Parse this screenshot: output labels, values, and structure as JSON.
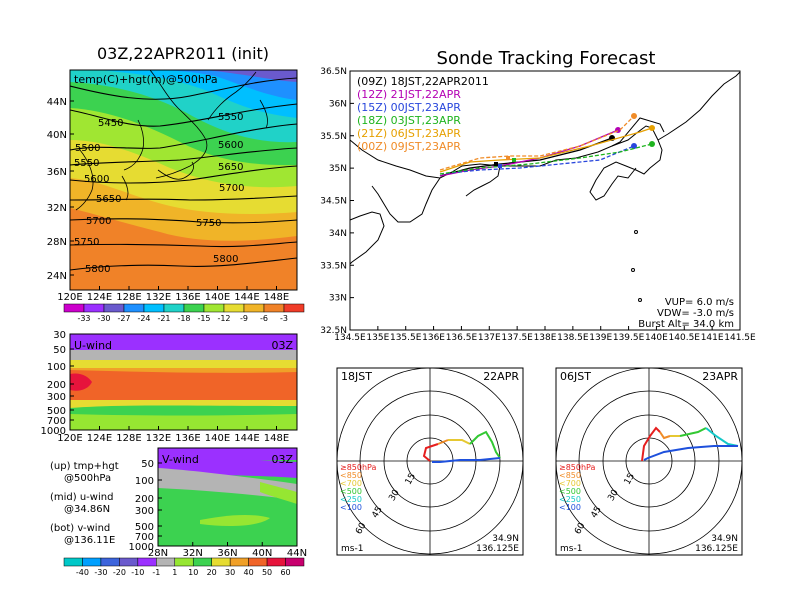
{
  "left": {
    "title": "03Z,22APR2011 (init)",
    "top_panel": {
      "label": "temp(C)+hgt(m)@500hPa",
      "contour_labels": [
        "5450",
        "5500",
        "5550",
        "5550",
        "5600",
        "5600",
        "5650",
        "5650",
        "5700",
        "5700",
        "5750",
        "5750",
        "5800",
        "5800"
      ],
      "yticks": [
        "44N",
        "40N",
        "36N",
        "32N",
        "28N",
        "24N"
      ],
      "xticks": [
        "120E",
        "124E",
        "128E",
        "132E",
        "136E",
        "140E",
        "144E",
        "148E"
      ],
      "colorbar_labels": [
        "-33",
        "-30",
        "-27",
        "-24",
        "-21",
        "-18",
        "-15",
        "-12",
        "-9",
        "-6",
        "-3"
      ],
      "colorbar_colors": [
        "#cc00cc",
        "#9b30ff",
        "#6a5acd",
        "#1e90ff",
        "#00bfff",
        "#20d2c8",
        "#3cd250",
        "#a0e632",
        "#e6dc32",
        "#f0b428",
        "#f08228",
        "#f03c28"
      ]
    },
    "u_panel": {
      "label": "U-wind",
      "time": "03Z",
      "yticks": [
        "30",
        "50",
        "100",
        "200",
        "300",
        "500",
        "700",
        "1000"
      ],
      "xticks": [
        "120E",
        "124E",
        "128E",
        "132E",
        "136E",
        "140E",
        "144E",
        "148E"
      ]
    },
    "v_panel": {
      "label": "V-wind",
      "time": "03Z",
      "yticks": [
        "50",
        "100",
        "200",
        "300",
        "500",
        "700",
        "1000"
      ],
      "xticks": [
        "28N",
        "32N",
        "36N",
        "40N",
        "44N"
      ]
    },
    "notes": [
      {
        "line1": "(up) tmp+hgt",
        "line2": "@500hPa"
      },
      {
        "line1": "(mid) u-wind",
        "line2": "@34.86N"
      },
      {
        "line1": "(bot) v-wind",
        "line2": "@136.11E"
      }
    ],
    "wind_colorbar_labels": [
      "-40",
      "-30",
      "-20",
      "-10",
      "-1",
      "1",
      "10",
      "20",
      "30",
      "40",
      "50",
      "60"
    ],
    "wind_colorbar_colors": [
      "#00c8c8",
      "#00a0ff",
      "#3c64dc",
      "#6a5acd",
      "#9b30ff",
      "#b4b4b4",
      "#96e632",
      "#3cd250",
      "#e6dc32",
      "#f0a028",
      "#f06428",
      "#e6143c",
      "#c8006e"
    ]
  },
  "right": {
    "title": "Sonde Tracking Forecast",
    "map": {
      "legend": [
        {
          "text": "(09Z)  18JST,22APR2011",
          "color": "#000000"
        },
        {
          "text": "(12Z)  21JST,22APR",
          "color": "#b400b4"
        },
        {
          "text": "(15Z)  00JST,23APR",
          "color": "#2846dc"
        },
        {
          "text": "(18Z)  03JST,23APR",
          "color": "#1eb41e"
        },
        {
          "text": "(21Z)  06JST,23APR",
          "color": "#e6a000"
        },
        {
          "text": "(00Z)  09JST,23APR",
          "color": "#f08c28"
        }
      ],
      "yticks": [
        "36.5N",
        "36N",
        "35.5N",
        "35N",
        "34.5N",
        "34N",
        "33.5N",
        "33N",
        "32.5N"
      ],
      "xticks": [
        "134.5E",
        "135E",
        "135.5E",
        "136E",
        "136.5E",
        "137E",
        "137.5E",
        "138E",
        "138.5E",
        "139E",
        "139.5E",
        "140E",
        "140.5E",
        "141E",
        "141.5E"
      ],
      "info": [
        "VUP=  6.0  m/s",
        "VDW= -3.0  m/s",
        "Burst Alt= 34.0  km"
      ]
    },
    "hodographs": [
      {
        "time": "18JST",
        "date": "22APR",
        "lat": "34.9N",
        "lon": "136.125E",
        "unit": "ms-1"
      },
      {
        "time": "06JST",
        "date": "23APR",
        "lat": "34.9N",
        "lon": "136.125E",
        "unit": "ms-1"
      }
    ],
    "ring_labels": [
      "15",
      "30",
      "45",
      "60"
    ],
    "pressure_legend": [
      {
        "text": "≥850hPa",
        "color": "#e61e1e"
      },
      {
        "text": "<850",
        "color": "#f08c28"
      },
      {
        "text": "<700",
        "color": "#e6c832"
      },
      {
        "text": "<500",
        "color": "#32c832"
      },
      {
        "text": "<250",
        "color": "#14c8c8"
      },
      {
        "text": "<100",
        "color": "#1e50dc"
      }
    ]
  }
}
